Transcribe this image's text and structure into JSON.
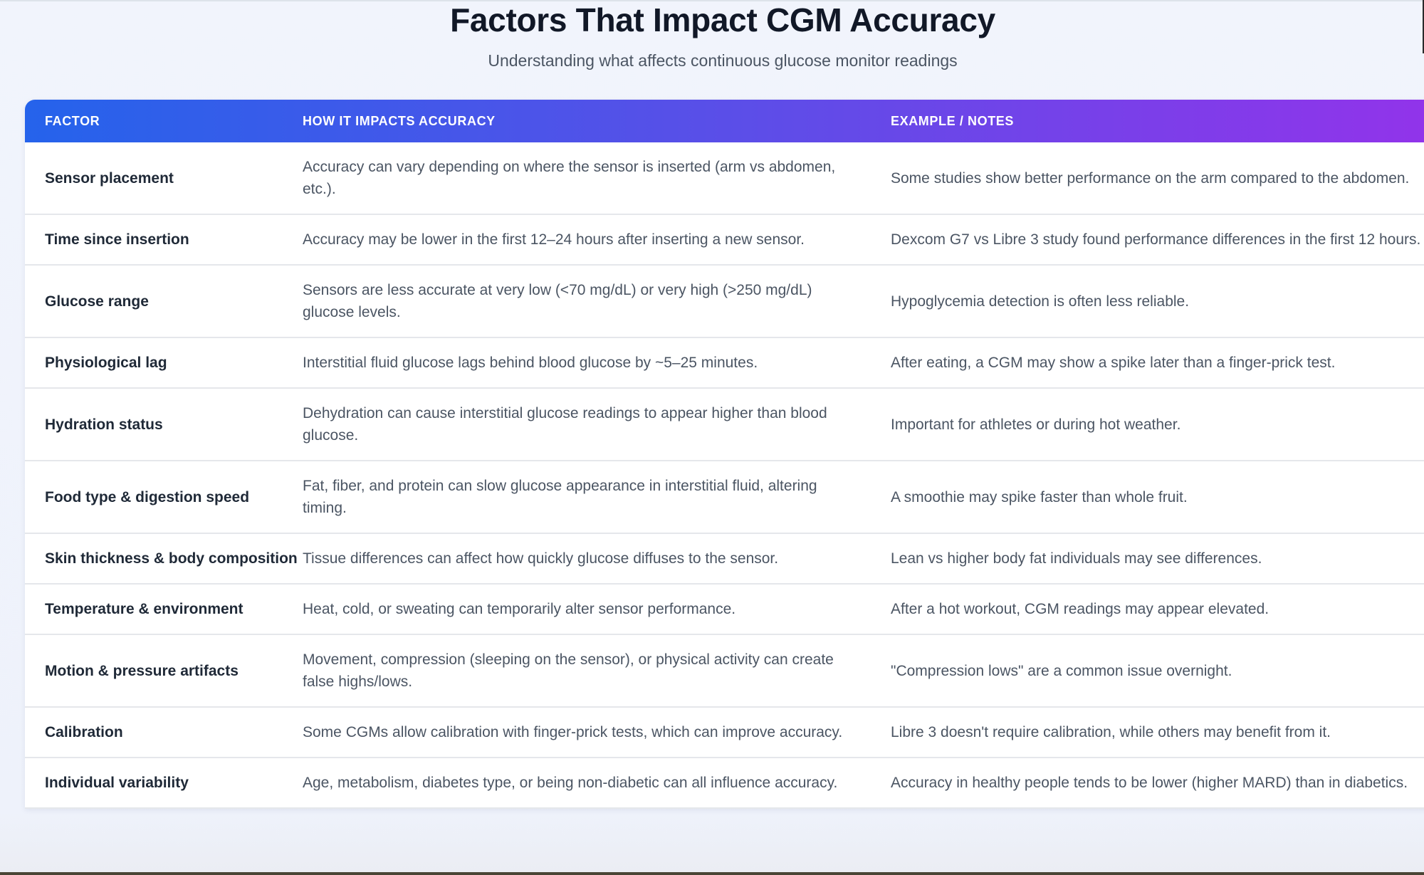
{
  "header": {
    "title": "Factors That Impact CGM Accuracy",
    "subtitle": "Understanding what affects continuous glucose monitor readings"
  },
  "table": {
    "columns": [
      "FACTOR",
      "HOW IT IMPACTS ACCURACY",
      "EXAMPLE / NOTES"
    ],
    "rows": [
      [
        "Sensor placement",
        "Accuracy can vary depending on where the sensor is inserted (arm vs abdomen, etc.).",
        "Some studies show better performance on the arm compared to the abdomen."
      ],
      [
        "Time since insertion",
        "Accuracy may be lower in the first 12–24 hours after inserting a new sensor.",
        "Dexcom G7 vs Libre 3 study found performance differences in the first 12 hours."
      ],
      [
        "Glucose range",
        "Sensors are less accurate at very low (<70 mg/dL) or very high (>250 mg/dL) glucose levels.",
        "Hypoglycemia detection is often less reliable."
      ],
      [
        "Physiological lag",
        "Interstitial fluid glucose lags behind blood glucose by ~5–25 minutes.",
        "After eating, a CGM may show a spike later than a finger-prick test."
      ],
      [
        "Hydration status",
        "Dehydration can cause interstitial glucose readings to appear higher than blood glucose.",
        "Important for athletes or during hot weather."
      ],
      [
        "Food type & digestion speed",
        "Fat, fiber, and protein can slow glucose appearance in interstitial fluid, altering timing.",
        "A smoothie may spike faster than whole fruit."
      ],
      [
        "Skin thickness & body composition",
        "Tissue differences can affect how quickly glucose diffuses to the sensor.",
        "Lean vs higher body fat individuals may see differences."
      ],
      [
        "Temperature & environment",
        "Heat, cold, or sweating can temporarily alter sensor performance.",
        "After a hot workout, CGM readings may appear elevated."
      ],
      [
        "Motion & pressure artifacts",
        "Movement, compression (sleeping on the sensor), or physical activity can create false highs/lows.",
        "\"Compression lows\" are a common issue overnight."
      ],
      [
        "Calibration",
        "Some CGMs allow calibration with finger-prick tests, which can improve accuracy.",
        "Libre 3 doesn't require calibration, while others may benefit from it."
      ],
      [
        "Individual variability",
        "Age, metabolism, diabetes type, or being non-diabetic can all influence accuracy.",
        "Accuracy in healthy people tends to be lower (higher MARD) than in diabetics."
      ]
    ]
  },
  "colors": {
    "header_start": "#2563eb",
    "header_end": "#9333ea",
    "factor_text": "#1f2937",
    "body_text": "#4b5563"
  }
}
